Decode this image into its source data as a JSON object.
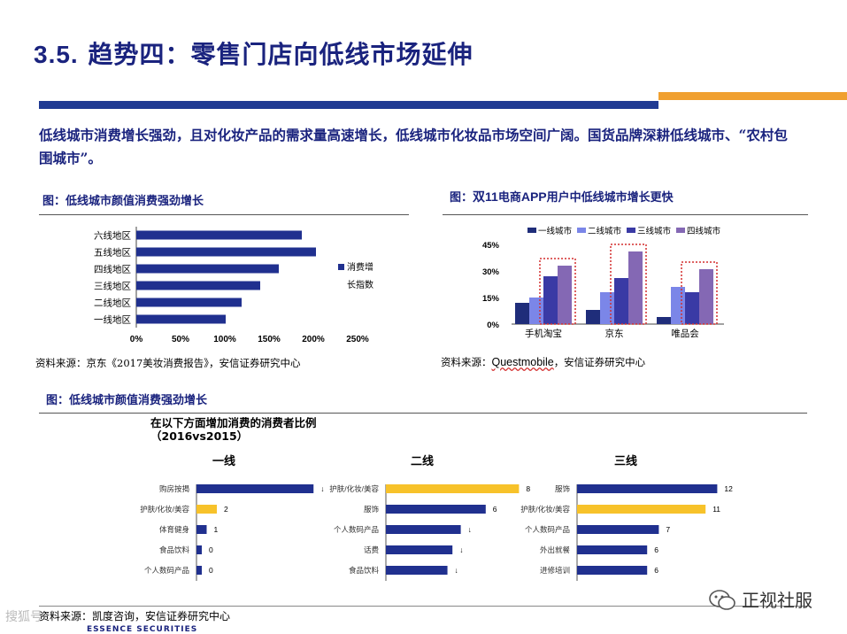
{
  "header": {
    "section_number": "3.5.",
    "title": "趋势四：零售门店向低线市场延伸"
  },
  "colors": {
    "navy": "#1f3a93",
    "orange": "#f0a030",
    "bar_navy": "#20308f",
    "bar_gold": "#f7c22a"
  },
  "lead_text": "低线城市消费增长强劲，且对化妆产品的需求量高速增长，低线城市化妆品市场空间广阔。国货品牌深耕低线城市、“农村包围城市”。",
  "figure1": {
    "caption": "图：低线城市颜值消费强劲增长",
    "source": "资料来源：京东《2017美妆消费报告》，安信证券研究中心"
  },
  "figure2": {
    "caption_prefix": "图：",
    "caption_num": "双11",
    "caption_mid": "电商",
    "caption_app": "APP",
    "caption_suffix": "用户中低线城市增长更快",
    "source_prefix": "资料来源：",
    "source_name": "Questmobile",
    "source_suffix": "，安信证券研究中心"
  },
  "figure3": {
    "caption": "图：低线城市颜值消费强劲增长",
    "inner_title_line1": "在以下方面增加消费的消费者比例",
    "inner_title_line2": "（2016vs2015）",
    "source": "资料来源：凯度咨询，安信证券研究中心"
  },
  "chart_data": [
    {
      "type": "bar",
      "orientation": "horizontal",
      "categories": [
        "六线地区",
        "五线地区",
        "四线地区",
        "三线地区",
        "二线地区",
        "一线地区"
      ],
      "values": [
        187,
        203,
        161,
        140,
        119,
        101
      ],
      "legend": [
        "消费增",
        "长指数"
      ],
      "xlim": [
        0,
        250
      ],
      "xticks": [
        "0%",
        "50%",
        "100%",
        "150%",
        "200%",
        "250%"
      ]
    },
    {
      "type": "bar",
      "categories": [
        "手机淘宝",
        "京东",
        "唯品会"
      ],
      "series": [
        {
          "name": "一线城市",
          "values": [
            12,
            8,
            4
          ]
        },
        {
          "name": "二线城市",
          "values": [
            15,
            18,
            21
          ]
        },
        {
          "name": "三线城市",
          "values": [
            27,
            26,
            18
          ]
        },
        {
          "name": "四线城市",
          "values": [
            33,
            41,
            31
          ]
        }
      ],
      "ylim": [
        0,
        45
      ],
      "yticks": [
        "0%",
        "15%",
        "30%",
        "45%"
      ],
      "legend_position": "top"
    },
    {
      "type": "bar",
      "orientation": "horizontal",
      "panels": [
        {
          "title": "一线",
          "categories": [
            "购房按揭",
            "护肤/化妆/美容",
            "体育健身",
            "食品饮料",
            "个人数码产品"
          ],
          "values": [
            11.5,
            2,
            1,
            0,
            0
          ],
          "labels": [
            "↓",
            "2",
            "1",
            "0",
            "0"
          ],
          "highlight_index": 1
        },
        {
          "title": "二线",
          "categories": [
            "护肤/化妆/美容",
            "服饰",
            "个人数码产品",
            "话费",
            "食品饮料"
          ],
          "values": [
            8,
            6,
            4.5,
            4,
            3.7
          ],
          "labels": [
            "8",
            "6",
            "↓",
            "↓",
            "↓"
          ],
          "highlight_index": 0
        },
        {
          "title": "三线",
          "categories": [
            "服饰",
            "护肤/化妆/美容",
            "个人数码产品",
            "外出就餐",
            "进修培训"
          ],
          "values": [
            12,
            11,
            7,
            6,
            6
          ],
          "labels": [
            "12",
            "11",
            "7",
            "6",
            "6"
          ],
          "highlight_index": 1
        }
      ]
    }
  ],
  "footer": {
    "logo_text": "ESSENCE SECURITIES",
    "watermark": "正视社服",
    "left_watermark": "搜狐号"
  }
}
